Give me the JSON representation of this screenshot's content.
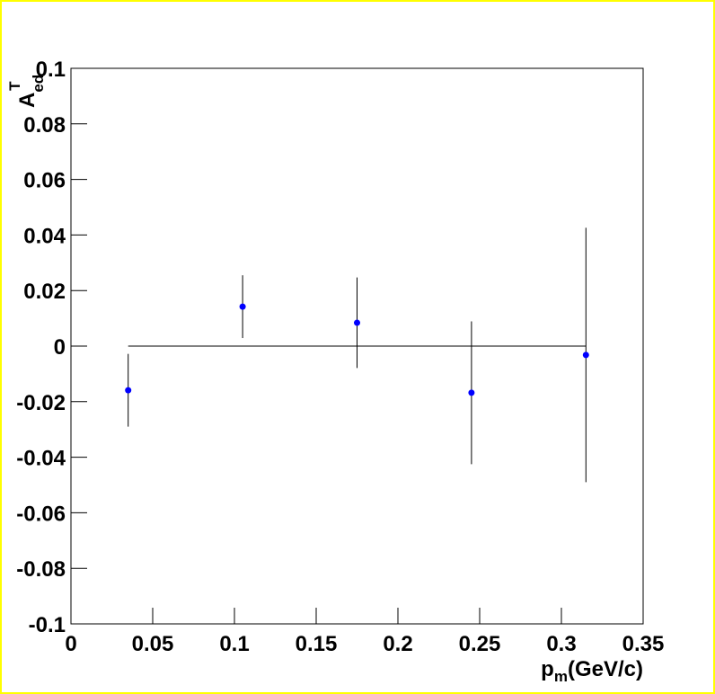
{
  "chart_data": {
    "type": "scatter",
    "xlabel": {
      "main": "p",
      "sub": "m",
      "rest": "(GeV/c)"
    },
    "ylabel": {
      "main": "A",
      "sub": "ed",
      "sup": "T"
    },
    "series": [
      {
        "color": "#0000ff",
        "x": [
          0.035,
          0.105,
          0.175,
          0.245,
          0.315
        ],
        "values": [
          -0.0159,
          0.0142,
          0.0084,
          -0.0168,
          -0.0032
        ],
        "errors": [
          0.0131,
          0.0113,
          0.0163,
          0.0257,
          0.0458
        ]
      }
    ],
    "fit_line": {
      "x": [
        0.035,
        0.315
      ],
      "values": [
        0,
        0
      ]
    },
    "xlim": [
      0,
      0.35
    ],
    "xticks": [
      0,
      0.05,
      0.1,
      0.15,
      0.2,
      0.25,
      0.3,
      0.35
    ],
    "ylim": [
      -0.1,
      0.1
    ],
    "yticks": [
      -0.1,
      -0.08,
      -0.06,
      -0.04,
      -0.02,
      0,
      0.02,
      0.04,
      0.06,
      0.08,
      0.1
    ]
  }
}
